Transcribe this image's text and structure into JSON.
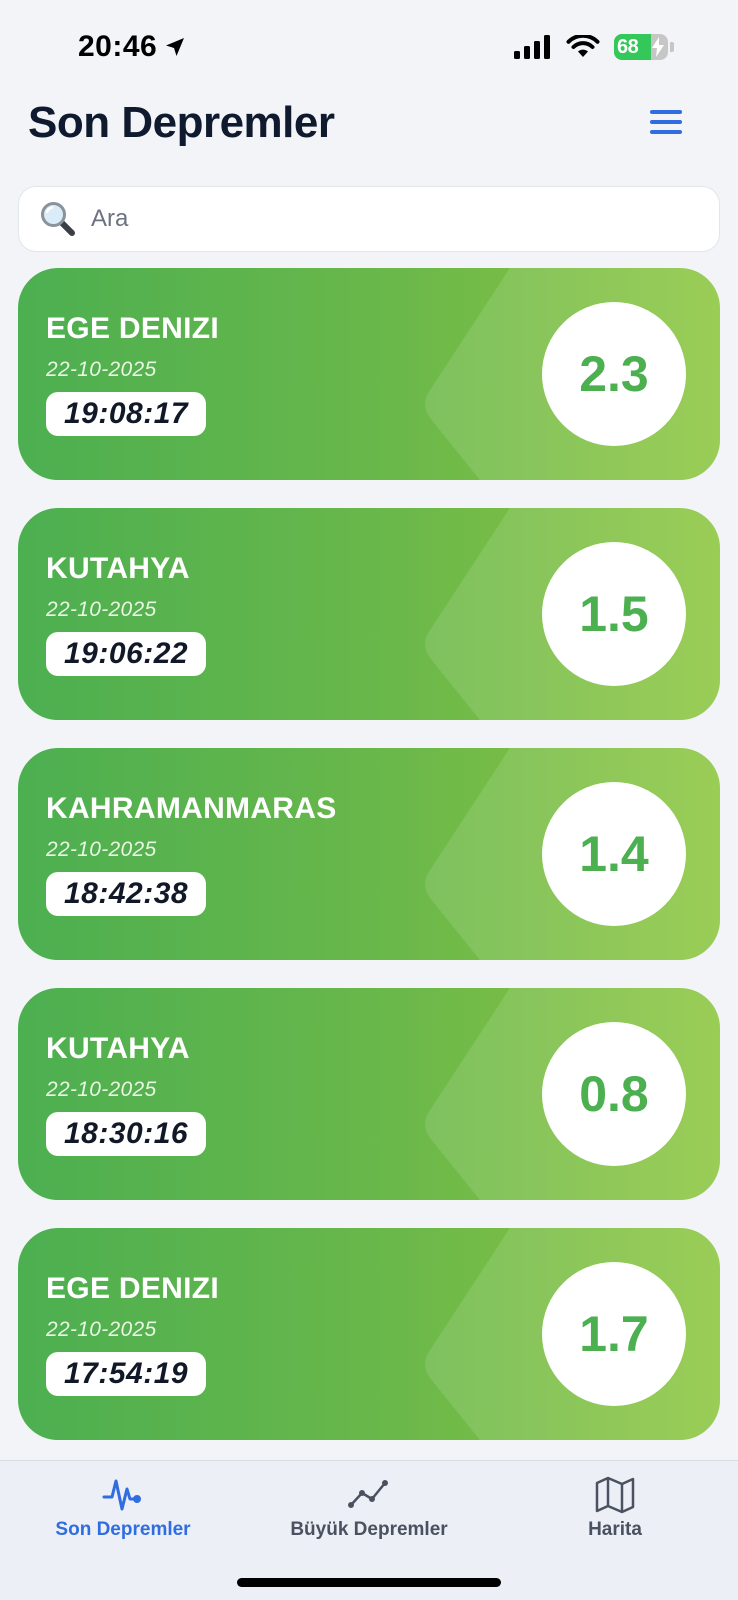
{
  "status_bar": {
    "time": "20:46",
    "battery_percent": "68",
    "battery_level": 0.68
  },
  "header": {
    "title": "Son Depremler"
  },
  "search": {
    "placeholder": "Ara"
  },
  "earthquakes": [
    {
      "location": "EGE DENIZI",
      "date": "22-10-2025",
      "time": "19:08:17",
      "magnitude": "2.3"
    },
    {
      "location": "KUTAHYA",
      "date": "22-10-2025",
      "time": "19:06:22",
      "magnitude": "1.5"
    },
    {
      "location": "KAHRAMANMARAS",
      "date": "22-10-2025",
      "time": "18:42:38",
      "magnitude": "1.4"
    },
    {
      "location": "KUTAHYA",
      "date": "22-10-2025",
      "time": "18:30:16",
      "magnitude": "0.8"
    },
    {
      "location": "EGE DENIZI",
      "date": "22-10-2025",
      "time": "17:54:19",
      "magnitude": "1.7"
    }
  ],
  "tabs": [
    {
      "label": "Son Depremler",
      "icon": "pulse-icon",
      "active": true
    },
    {
      "label": "Büyük Depremler",
      "icon": "trend-line-icon",
      "active": false
    },
    {
      "label": "Harita",
      "icon": "map-icon",
      "active": false
    }
  ],
  "colors": {
    "accent": "#2f6de1",
    "card_green": "#4caf50",
    "card_green_light": "#8cc63f"
  }
}
